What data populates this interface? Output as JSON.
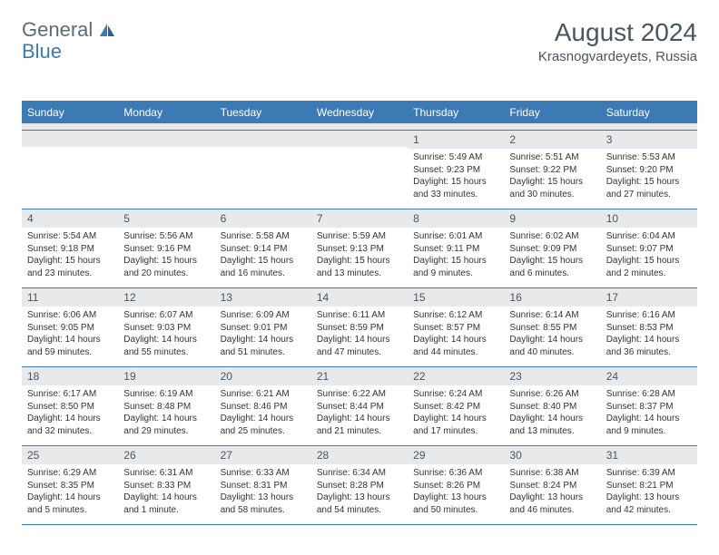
{
  "logo": {
    "word1": "General",
    "word2": "Blue"
  },
  "title": "August 2024",
  "location": "Krasnogvardeyets, Russia",
  "colors": {
    "header_bg": "#3c7ab5",
    "header_text": "#ffffff",
    "daynum_bg": "#e8e9ea",
    "text": "#333333",
    "rule": "#3c7ab5",
    "logo_gray": "#5a6b7a",
    "logo_blue": "#3c7ab5"
  },
  "day_names": [
    "Sunday",
    "Monday",
    "Tuesday",
    "Wednesday",
    "Thursday",
    "Friday",
    "Saturday"
  ],
  "weeks": [
    [
      {
        "n": "",
        "sr": "",
        "ss": "",
        "dl": ""
      },
      {
        "n": "",
        "sr": "",
        "ss": "",
        "dl": ""
      },
      {
        "n": "",
        "sr": "",
        "ss": "",
        "dl": ""
      },
      {
        "n": "",
        "sr": "",
        "ss": "",
        "dl": ""
      },
      {
        "n": "1",
        "sr": "Sunrise: 5:49 AM",
        "ss": "Sunset: 9:23 PM",
        "dl": "Daylight: 15 hours and 33 minutes."
      },
      {
        "n": "2",
        "sr": "Sunrise: 5:51 AM",
        "ss": "Sunset: 9:22 PM",
        "dl": "Daylight: 15 hours and 30 minutes."
      },
      {
        "n": "3",
        "sr": "Sunrise: 5:53 AM",
        "ss": "Sunset: 9:20 PM",
        "dl": "Daylight: 15 hours and 27 minutes."
      }
    ],
    [
      {
        "n": "4",
        "sr": "Sunrise: 5:54 AM",
        "ss": "Sunset: 9:18 PM",
        "dl": "Daylight: 15 hours and 23 minutes."
      },
      {
        "n": "5",
        "sr": "Sunrise: 5:56 AM",
        "ss": "Sunset: 9:16 PM",
        "dl": "Daylight: 15 hours and 20 minutes."
      },
      {
        "n": "6",
        "sr": "Sunrise: 5:58 AM",
        "ss": "Sunset: 9:14 PM",
        "dl": "Daylight: 15 hours and 16 minutes."
      },
      {
        "n": "7",
        "sr": "Sunrise: 5:59 AM",
        "ss": "Sunset: 9:13 PM",
        "dl": "Daylight: 15 hours and 13 minutes."
      },
      {
        "n": "8",
        "sr": "Sunrise: 6:01 AM",
        "ss": "Sunset: 9:11 PM",
        "dl": "Daylight: 15 hours and 9 minutes."
      },
      {
        "n": "9",
        "sr": "Sunrise: 6:02 AM",
        "ss": "Sunset: 9:09 PM",
        "dl": "Daylight: 15 hours and 6 minutes."
      },
      {
        "n": "10",
        "sr": "Sunrise: 6:04 AM",
        "ss": "Sunset: 9:07 PM",
        "dl": "Daylight: 15 hours and 2 minutes."
      }
    ],
    [
      {
        "n": "11",
        "sr": "Sunrise: 6:06 AM",
        "ss": "Sunset: 9:05 PM",
        "dl": "Daylight: 14 hours and 59 minutes."
      },
      {
        "n": "12",
        "sr": "Sunrise: 6:07 AM",
        "ss": "Sunset: 9:03 PM",
        "dl": "Daylight: 14 hours and 55 minutes."
      },
      {
        "n": "13",
        "sr": "Sunrise: 6:09 AM",
        "ss": "Sunset: 9:01 PM",
        "dl": "Daylight: 14 hours and 51 minutes."
      },
      {
        "n": "14",
        "sr": "Sunrise: 6:11 AM",
        "ss": "Sunset: 8:59 PM",
        "dl": "Daylight: 14 hours and 47 minutes."
      },
      {
        "n": "15",
        "sr": "Sunrise: 6:12 AM",
        "ss": "Sunset: 8:57 PM",
        "dl": "Daylight: 14 hours and 44 minutes."
      },
      {
        "n": "16",
        "sr": "Sunrise: 6:14 AM",
        "ss": "Sunset: 8:55 PM",
        "dl": "Daylight: 14 hours and 40 minutes."
      },
      {
        "n": "17",
        "sr": "Sunrise: 6:16 AM",
        "ss": "Sunset: 8:53 PM",
        "dl": "Daylight: 14 hours and 36 minutes."
      }
    ],
    [
      {
        "n": "18",
        "sr": "Sunrise: 6:17 AM",
        "ss": "Sunset: 8:50 PM",
        "dl": "Daylight: 14 hours and 32 minutes."
      },
      {
        "n": "19",
        "sr": "Sunrise: 6:19 AM",
        "ss": "Sunset: 8:48 PM",
        "dl": "Daylight: 14 hours and 29 minutes."
      },
      {
        "n": "20",
        "sr": "Sunrise: 6:21 AM",
        "ss": "Sunset: 8:46 PM",
        "dl": "Daylight: 14 hours and 25 minutes."
      },
      {
        "n": "21",
        "sr": "Sunrise: 6:22 AM",
        "ss": "Sunset: 8:44 PM",
        "dl": "Daylight: 14 hours and 21 minutes."
      },
      {
        "n": "22",
        "sr": "Sunrise: 6:24 AM",
        "ss": "Sunset: 8:42 PM",
        "dl": "Daylight: 14 hours and 17 minutes."
      },
      {
        "n": "23",
        "sr": "Sunrise: 6:26 AM",
        "ss": "Sunset: 8:40 PM",
        "dl": "Daylight: 14 hours and 13 minutes."
      },
      {
        "n": "24",
        "sr": "Sunrise: 6:28 AM",
        "ss": "Sunset: 8:37 PM",
        "dl": "Daylight: 14 hours and 9 minutes."
      }
    ],
    [
      {
        "n": "25",
        "sr": "Sunrise: 6:29 AM",
        "ss": "Sunset: 8:35 PM",
        "dl": "Daylight: 14 hours and 5 minutes."
      },
      {
        "n": "26",
        "sr": "Sunrise: 6:31 AM",
        "ss": "Sunset: 8:33 PM",
        "dl": "Daylight: 14 hours and 1 minute."
      },
      {
        "n": "27",
        "sr": "Sunrise: 6:33 AM",
        "ss": "Sunset: 8:31 PM",
        "dl": "Daylight: 13 hours and 58 minutes."
      },
      {
        "n": "28",
        "sr": "Sunrise: 6:34 AM",
        "ss": "Sunset: 8:28 PM",
        "dl": "Daylight: 13 hours and 54 minutes."
      },
      {
        "n": "29",
        "sr": "Sunrise: 6:36 AM",
        "ss": "Sunset: 8:26 PM",
        "dl": "Daylight: 13 hours and 50 minutes."
      },
      {
        "n": "30",
        "sr": "Sunrise: 6:38 AM",
        "ss": "Sunset: 8:24 PM",
        "dl": "Daylight: 13 hours and 46 minutes."
      },
      {
        "n": "31",
        "sr": "Sunrise: 6:39 AM",
        "ss": "Sunset: 8:21 PM",
        "dl": "Daylight: 13 hours and 42 minutes."
      }
    ]
  ]
}
